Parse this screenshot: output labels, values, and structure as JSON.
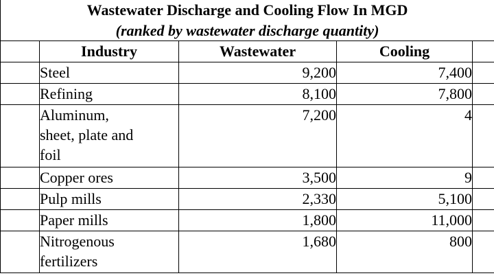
{
  "table": {
    "title": "Wastewater Discharge and Cooling Flow In MGD",
    "subtitle": "(ranked by wastewater discharge quantity)",
    "headers": [
      "Industry",
      "Wastewater",
      "Cooling"
    ],
    "rows": [
      {
        "industry": "Steel",
        "wastewater": "9,200",
        "cooling": "7,400"
      },
      {
        "industry": "Refining",
        "wastewater": "8,100",
        "cooling": "7,800"
      },
      {
        "industry_lines": [
          "Aluminum,",
          "sheet, plate and",
          "foil"
        ],
        "wastewater": "7,200",
        "cooling": "4"
      },
      {
        "industry": "Copper ores",
        "wastewater": "3,500",
        "cooling": "9"
      },
      {
        "industry": "Pulp mills",
        "wastewater": "2,330",
        "cooling": "5,100"
      },
      {
        "industry": "Paper mills",
        "wastewater": "1,800",
        "cooling": "11,000"
      },
      {
        "industry_lines": [
          "Nitrogenous",
          "fertilizers"
        ],
        "wastewater": "1,680",
        "cooling": "800"
      }
    ]
  }
}
